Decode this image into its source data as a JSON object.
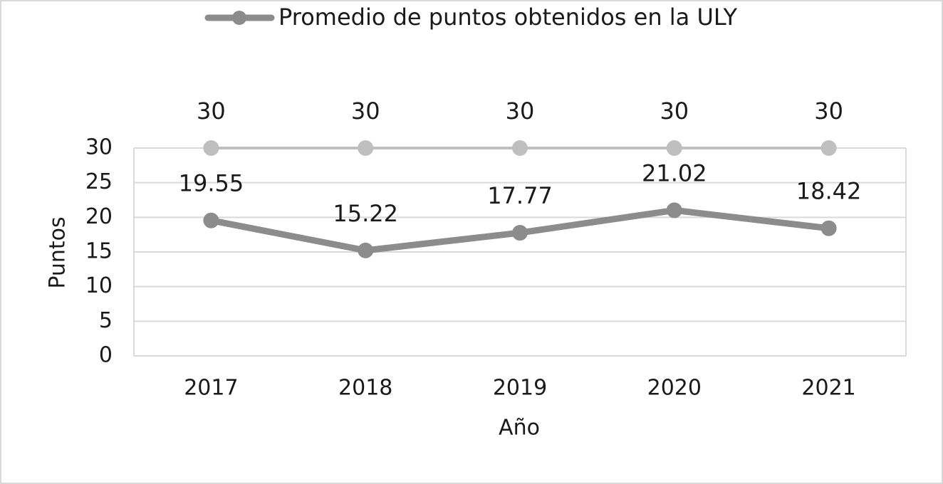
{
  "chart_data": {
    "type": "line",
    "x_label": "Año",
    "y_label": "Puntos",
    "categories": [
      "2017",
      "2018",
      "2019",
      "2020",
      "2021"
    ],
    "series": [
      {
        "name": "Promedio de puntos obtenidos en la ULY",
        "color": "#8c8c8c",
        "values": [
          19.55,
          15.22,
          17.77,
          21.02,
          18.42
        ]
      },
      {
        "color": "#bfbfbf",
        "values": [
          30,
          30,
          30,
          30,
          30
        ]
      }
    ],
    "ylim": [
      0,
      30
    ],
    "yticks": [
      0,
      5,
      10,
      15,
      20,
      25,
      30
    ],
    "grid": true,
    "legend": "top"
  }
}
